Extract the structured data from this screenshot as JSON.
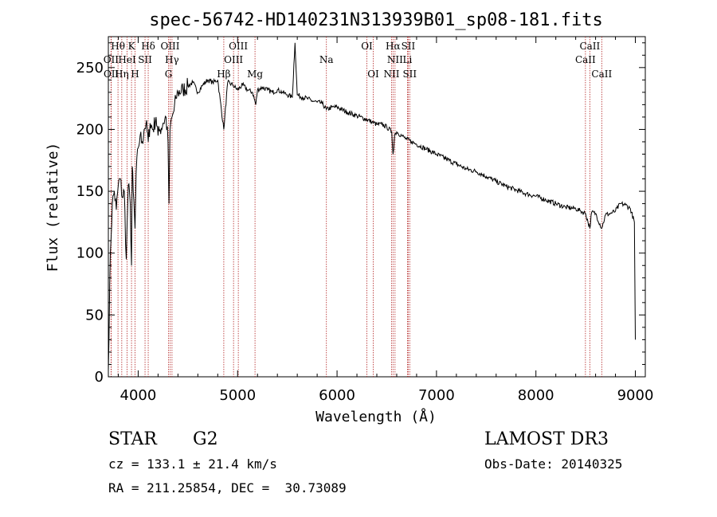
{
  "chart_data": {
    "type": "line",
    "title": "spec-56742-HD140231N313939B01_sp08-181.fits",
    "xlabel": "Wavelength (Å)",
    "ylabel": "Flux (relative)",
    "xlim": [
      3700,
      9100
    ],
    "ylim": [
      0,
      275
    ],
    "xticks": [
      4000,
      5000,
      6000,
      7000,
      8000,
      9000
    ],
    "yticks": [
      0,
      50,
      100,
      150,
      200,
      250
    ],
    "xtick_labels": [
      "4000",
      "5000",
      "6000",
      "7000",
      "8000",
      "9000"
    ],
    "ytick_labels": [
      "0",
      "50",
      "100",
      "150",
      "200",
      "250"
    ],
    "series": [
      {
        "name": "flux",
        "x": [
          3700,
          3720,
          3740,
          3760,
          3780,
          3800,
          3820,
          3840,
          3860,
          3880,
          3900,
          3920,
          3933,
          3940,
          3950,
          3968,
          3980,
          4000,
          4020,
          4040,
          4060,
          4080,
          4101,
          4120,
          4150,
          4180,
          4200,
          4220,
          4250,
          4280,
          4300,
          4310,
          4320,
          4340,
          4360,
          4380,
          4400,
          4450,
          4500,
          4550,
          4600,
          4650,
          4700,
          4750,
          4800,
          4861,
          4900,
          4950,
          5000,
          5050,
          5100,
          5150,
          5183,
          5200,
          5250,
          5300,
          5350,
          5400,
          5450,
          5500,
          5550,
          5577,
          5600,
          5650,
          5700,
          5750,
          5800,
          5850,
          5893,
          5950,
          6000,
          6100,
          6200,
          6300,
          6350,
          6400,
          6450,
          6500,
          6550,
          6563,
          6580,
          6600,
          6650,
          6700,
          6750,
          6800,
          6900,
          7000,
          7100,
          7200,
          7300,
          7400,
          7500,
          7600,
          7700,
          7800,
          7900,
          8000,
          8100,
          8200,
          8300,
          8400,
          8450,
          8500,
          8542,
          8560,
          8600,
          8662,
          8700,
          8750,
          8800,
          8850,
          8900,
          8950,
          8990,
          9000
        ],
        "values": [
          5,
          100,
          140,
          150,
          135,
          155,
          160,
          145,
          150,
          95,
          155,
          140,
          90,
          170,
          150,
          120,
          165,
          185,
          195,
          190,
          200,
          205,
          190,
          205,
          200,
          210,
          195,
          200,
          205,
          210,
          190,
          140,
          200,
          210,
          215,
          225,
          230,
          232,
          235,
          238,
          230,
          236,
          240,
          238,
          240,
          200,
          238,
          236,
          232,
          236,
          232,
          230,
          220,
          232,
          234,
          232,
          230,
          232,
          230,
          228,
          226,
          270,
          228,
          226,
          225,
          223,
          222,
          221,
          216,
          218,
          218,
          214,
          211,
          208,
          206,
          204,
          204,
          202,
          198,
          180,
          196,
          198,
          195,
          192,
          190,
          188,
          184,
          180,
          176,
          172,
          168,
          166,
          162,
          158,
          154,
          151,
          148,
          146,
          143,
          140,
          137,
          136,
          134,
          132,
          120,
          133,
          132,
          120,
          131,
          132,
          134,
          140,
          139,
          136,
          125,
          30
        ]
      }
    ],
    "line_markers": [
      {
        "label": "OII",
        "wavelength": 3727,
        "row": 2
      },
      {
        "label": "OII",
        "wavelength": 3729,
        "row": 3
      },
      {
        "label": "Hθ",
        "wavelength": 3797,
        "row": 1
      },
      {
        "label": "Hη",
        "wavelength": 3835,
        "row": 3
      },
      {
        "label": "HeI",
        "wavelength": 3889,
        "row": 2
      },
      {
        "label": "K",
        "wavelength": 3933,
        "row": 1
      },
      {
        "label": "H",
        "wavelength": 3968,
        "row": 3
      },
      {
        "label": "SII",
        "wavelength": 4069,
        "row": 2
      },
      {
        "label": "Hδ",
        "wavelength": 4101,
        "row": 1
      },
      {
        "label": "OIII",
        "wavelength": 4321,
        "row": 1
      },
      {
        "label": "Hγ",
        "wavelength": 4340,
        "row": 2
      },
      {
        "label": "G",
        "wavelength": 4305,
        "row": 3
      },
      {
        "label": "Hβ",
        "wavelength": 4861,
        "row": 3
      },
      {
        "label": "OIII",
        "wavelength": 4959,
        "row": 2
      },
      {
        "label": "OIII",
        "wavelength": 5007,
        "row": 1
      },
      {
        "label": "Mg",
        "wavelength": 5175,
        "row": 3
      },
      {
        "label": "Na",
        "wavelength": 5893,
        "row": 2
      },
      {
        "label": "OI",
        "wavelength": 6300,
        "row": 1
      },
      {
        "label": "OI",
        "wavelength": 6364,
        "row": 3
      },
      {
        "label": "NII",
        "wavelength": 6548,
        "row": 3
      },
      {
        "label": "Hα",
        "wavelength": 6563,
        "row": 1
      },
      {
        "label": "NII",
        "wavelength": 6583,
        "row": 2
      },
      {
        "label": "SII",
        "wavelength": 6716,
        "row": 1
      },
      {
        "label": "Li",
        "wavelength": 6708,
        "row": 2
      },
      {
        "label": "SII",
        "wavelength": 6731,
        "row": 3
      },
      {
        "label": "CaII",
        "wavelength": 8542,
        "row": 1
      },
      {
        "label": "CaII",
        "wavelength": 8498,
        "row": 2
      },
      {
        "label": "CaII",
        "wavelength": 8662,
        "row": 3
      }
    ]
  },
  "info": {
    "object_class": "STAR",
    "subclass": "G2",
    "survey": "LAMOST DR3",
    "redshift": "cz = 133.1 ± 21.4 km/s",
    "obs_date": "Obs-Date: 20140325",
    "coords": "RA = 211.25854, DEC =  30.73089"
  }
}
